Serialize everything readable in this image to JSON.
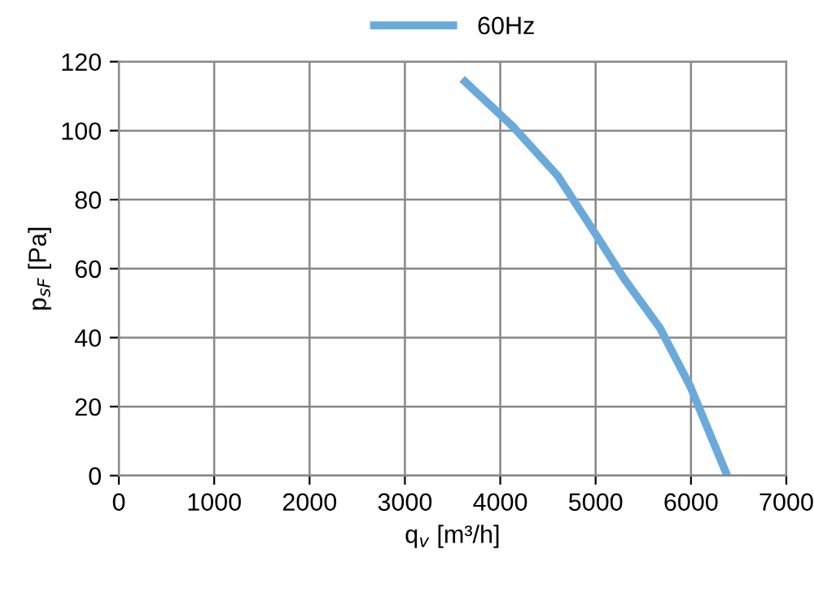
{
  "chart_data": {
    "type": "line",
    "xlabel": "q$_{v}$ [m³/h]",
    "ylabel": "p$_{sF}$ [Pa]",
    "series": [
      {
        "name": "60Hz",
        "color": "#6aaadb",
        "x": [
          3600,
          4140,
          4600,
          5000,
          5300,
          5670,
          5990,
          6380
        ],
        "values": [
          115,
          101,
          87,
          70,
          57,
          43,
          26,
          0
        ]
      }
    ],
    "xlim": [
      0,
      7000
    ],
    "xticks": [
      0,
      1000,
      2000,
      3000,
      4000,
      5000,
      6000,
      7000
    ],
    "ylim": [
      0,
      120
    ],
    "yticks": [
      0,
      20,
      40,
      60,
      80,
      100,
      120
    ],
    "grid": true,
    "legend": "top",
    "marker": "none",
    "line_style": "solid"
  }
}
